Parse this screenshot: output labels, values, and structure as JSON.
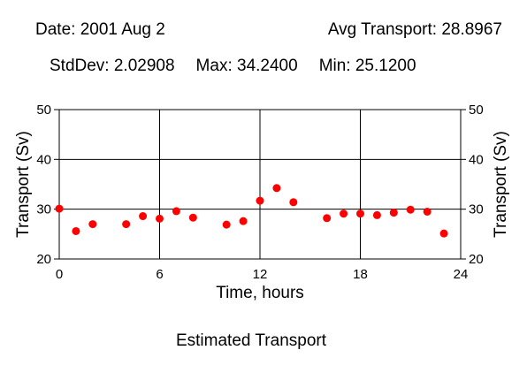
{
  "header": {
    "date": "Date: 2001 Aug 2",
    "avg": "Avg Transport: 28.8967",
    "stddev": "StdDev: 2.02908",
    "max": "Max: 34.2400",
    "min": "Min: 25.1200"
  },
  "caption": "Estimated Transport",
  "colors": {
    "marker": "#ff0000",
    "axis": "#000000"
  },
  "chart_data": {
    "type": "scatter",
    "title": "",
    "xlabel": "Time, hours",
    "ylabel": "Transport (Sv)",
    "xlim": [
      0,
      24
    ],
    "ylim": [
      20,
      50
    ],
    "xticks": [
      0,
      6,
      12,
      18,
      24
    ],
    "yticks": [
      20,
      30,
      40,
      50
    ],
    "grid": true,
    "x": [
      0,
      1,
      2,
      4,
      5,
      6,
      7,
      8,
      10,
      11,
      12,
      13,
      14,
      16,
      17,
      18,
      19,
      20,
      21,
      22,
      23
    ],
    "y": [
      30.1,
      25.6,
      27.0,
      27.0,
      28.6,
      28.1,
      29.6,
      28.3,
      26.9,
      27.6,
      31.7,
      34.24,
      31.4,
      28.2,
      29.1,
      29.1,
      28.8,
      29.3,
      29.9,
      29.5,
      25.12
    ]
  }
}
